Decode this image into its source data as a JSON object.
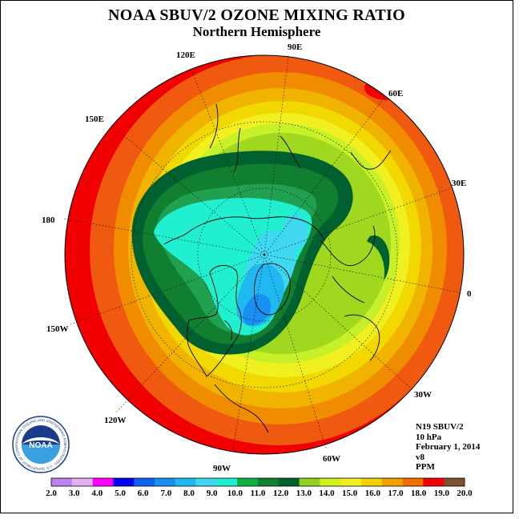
{
  "header": {
    "title": "NOAA SBUV/2 OZONE MIXING RATIO",
    "subtitle": "Northern Hemisphere"
  },
  "longitude_labels": [
    "90E",
    "60E",
    "30E",
    "0",
    "30W",
    "60W",
    "90W",
    "120W",
    "150W",
    "180",
    "150E",
    "120E"
  ],
  "info": {
    "satellite": "N19 SBUV/2",
    "level": "10 hPa",
    "date": "February 1, 2014",
    "version": "v8",
    "units": "PPM"
  },
  "logo": {
    "text": "NOAA",
    "ring_text": "NATIONAL OCEANIC AND ATMOSPHERIC ADMINISTRATION · U.S. DEPARTMENT OF COMMERCE"
  },
  "colorbar": {
    "ticks": [
      "2.0",
      "3.0",
      "4.0",
      "5.0",
      "6.0",
      "7.0",
      "8.0",
      "9.0",
      "10.0",
      "11.0",
      "12.0",
      "13.0",
      "14.0",
      "15.0",
      "16.0",
      "17.0",
      "18.0",
      "19.0",
      "20.0"
    ],
    "colors": [
      "#c080f0",
      "#e0b0f0",
      "#ff00ff",
      "#0000f0",
      "#1060f0",
      "#1890f0",
      "#20b8f0",
      "#40d8f0",
      "#20f0d0",
      "#10b040",
      "#108030",
      "#006030",
      "#90d020",
      "#d0f020",
      "#f0f020",
      "#f0d000",
      "#f0a000",
      "#f07000",
      "#f00000",
      "#805030"
    ]
  },
  "map_colors": {
    "red": "#f00000",
    "orange_red": "#f05a10",
    "orange": "#f08c00",
    "amber": "#f0b400",
    "gold": "#f0d800",
    "yellow": "#f0f020",
    "lime": "#c8f028",
    "yellow_green": "#a0d820",
    "dark_green": "#006030",
    "mid_green": "#108030",
    "green": "#20a050",
    "cyan": "#20f0d0",
    "sky": "#40d8f0",
    "blue": "#20b8f0",
    "deep_blue": "#1890f0"
  }
}
